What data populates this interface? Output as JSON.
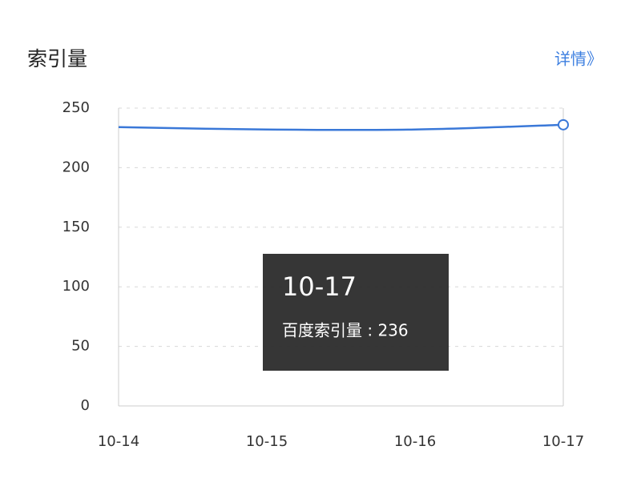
{
  "header": {
    "link": "详情》"
  },
  "chart_data": {
    "type": "line",
    "title": "索引量",
    "categories": [
      "10-14",
      "10-15",
      "10-16",
      "10-17"
    ],
    "series": [
      {
        "name": "百度索引量",
        "color": "#3a78d8",
        "values": [
          234,
          232,
          232,
          236
        ]
      }
    ],
    "ylim": [
      0,
      250
    ],
    "yticks": [
      0,
      50,
      100,
      150,
      200,
      250
    ],
    "grid": true,
    "tooltip": {
      "title": "10-17",
      "text": "百度索引量 : 236"
    }
  }
}
